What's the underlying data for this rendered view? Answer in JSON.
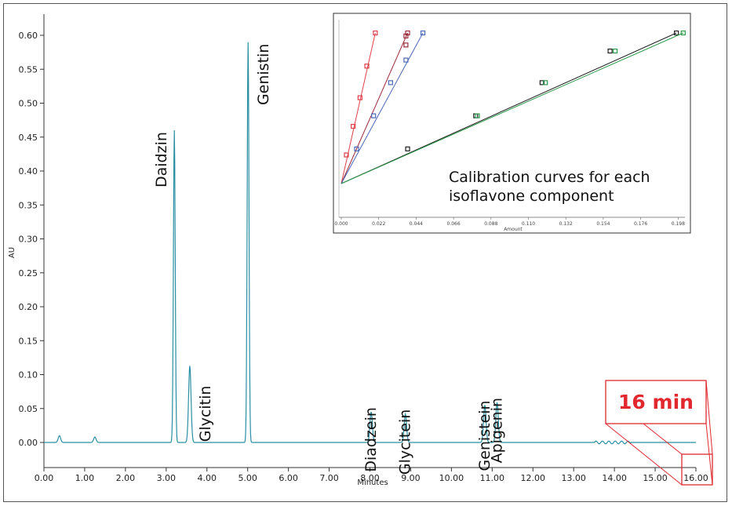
{
  "chart_data": [
    {
      "type": "line",
      "xlabel": "Minutes",
      "ylabel": "AU",
      "xlim": [
        0,
        16
      ],
      "ylim": [
        -0.02,
        0.62
      ],
      "x_ticks": [
        "0.00",
        "1.00",
        "2.00",
        "3.00",
        "4.00",
        "5.00",
        "6.00",
        "7.00",
        "8.00",
        "9.00",
        "10.00",
        "11.00",
        "12.00",
        "13.00",
        "14.00",
        "15.00",
        "16.00"
      ],
      "y_ticks": [
        "0.00",
        "0.05",
        "0.10",
        "0.15",
        "0.20",
        "0.25",
        "0.30",
        "0.35",
        "0.40",
        "0.45",
        "0.50",
        "0.55",
        "0.60"
      ],
      "grid": false,
      "line_color": "#2a8fa3",
      "series": [
        {
          "peaks": [
            {
              "label": "",
              "rt": 0.38,
              "height": 0.01
            },
            {
              "label": "",
              "rt": 1.25,
              "height": 0.008
            },
            {
              "label": "Daidzin",
              "rt": 3.2,
              "height": 0.46
            },
            {
              "label": "Glycitin",
              "rt": 3.58,
              "height": 0.113
            },
            {
              "label": "Genistin",
              "rt": 5.01,
              "height": 0.59
            },
            {
              "label": "Diadzein",
              "rt": 8.03,
              "height": 0.045
            },
            {
              "label": "Glycitein",
              "rt": 8.87,
              "height": 0.042
            },
            {
              "label": "Genistein",
              "rt": 10.82,
              "height": 0.055
            },
            {
              "label": "Apigenin",
              "rt": 11.12,
              "height": 0.059
            }
          ]
        }
      ]
    },
    {
      "type": "scatter",
      "xlabel": "Amount",
      "ylabel": "",
      "xlim": [
        0,
        0.202
      ],
      "x_ticks": [
        "0.000",
        "0.022",
        "0.044",
        "0.066",
        "0.088",
        "0.110",
        "0.132",
        "0.154",
        "0.176",
        "0.198"
      ],
      "annotation": [
        "Calibration curves for each",
        "isoflavone component"
      ],
      "series": [
        {
          "color": "#e0404a",
          "points": [
            [
              0.0,
              0.0
            ],
            [
              0.003,
              0.19
            ],
            [
              0.007,
              0.38
            ],
            [
              0.011,
              0.57
            ],
            [
              0.015,
              0.78
            ],
            [
              0.02,
              1.0
            ]
          ]
        },
        {
          "color": "#9a2b3a",
          "points": [
            [
              0.0,
              0.0
            ],
            [
              0.038,
              0.92
            ],
            [
              0.038,
              0.98
            ],
            [
              0.039,
              1.0
            ]
          ]
        },
        {
          "color": "#4a68b8",
          "points": [
            [
              0.0,
              0.0
            ],
            [
              0.009,
              0.23
            ],
            [
              0.019,
              0.45
            ],
            [
              0.029,
              0.67
            ],
            [
              0.038,
              0.82
            ],
            [
              0.048,
              1.0
            ]
          ]
        },
        {
          "color": "#1f1f1f",
          "points": [
            [
              0.0,
              0.0
            ],
            [
              0.039,
              0.23
            ],
            [
              0.079,
              0.45
            ],
            [
              0.118,
              0.67
            ],
            [
              0.158,
              0.88
            ],
            [
              0.197,
              1.0
            ]
          ]
        },
        {
          "color": "#2e9a4a",
          "points": [
            [
              0.0,
              0.0
            ],
            [
              0.08,
              0.45
            ],
            [
              0.12,
              0.67
            ],
            [
              0.161,
              0.88
            ],
            [
              0.201,
              1.0
            ]
          ]
        }
      ]
    }
  ],
  "callout": {
    "text": "16 min",
    "color": "#e0282e"
  }
}
